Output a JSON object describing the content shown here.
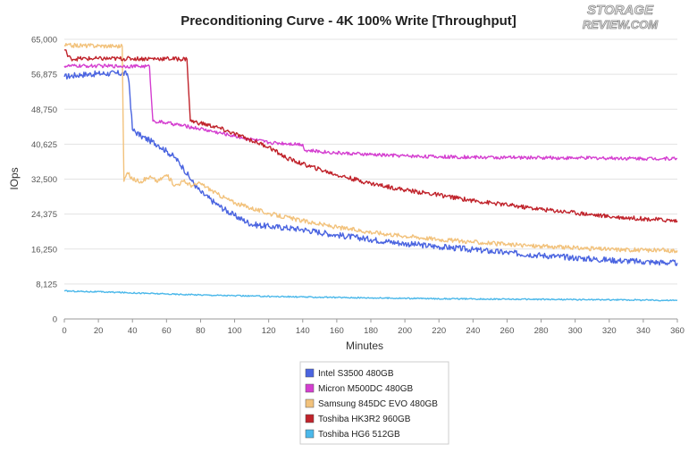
{
  "logo": {
    "line1": "STORAGE",
    "line2": "REVIEW.COM",
    "alt": "StorageReview.com logo"
  },
  "chart_data": {
    "type": "line",
    "title": "Preconditioning Curve - 4K 100% Write [Throughput]",
    "xlabel": "Minutes",
    "ylabel": "IOps",
    "xlim": [
      0,
      360
    ],
    "ylim": [
      0,
      65000
    ],
    "x_ticks": [
      0,
      20,
      40,
      60,
      80,
      100,
      120,
      140,
      160,
      180,
      200,
      220,
      240,
      260,
      280,
      300,
      320,
      340,
      360
    ],
    "y_ticks": [
      0,
      8125,
      16250,
      24375,
      32500,
      40625,
      48750,
      56875,
      65000
    ],
    "y_tick_labels": [
      "0",
      "8,125",
      "16,250",
      "24,375",
      "32,500",
      "40,625",
      "48,750",
      "56,875",
      "65,000"
    ],
    "grid": "horizontal",
    "legend_position": "bottom",
    "series": [
      {
        "name": "Intel S3500 480GB",
        "color": "#4a64e0",
        "points": [
          [
            0,
            56300
          ],
          [
            10,
            56800
          ],
          [
            20,
            57000
          ],
          [
            30,
            57100
          ],
          [
            37,
            57000
          ],
          [
            38,
            55000
          ],
          [
            40,
            44000
          ],
          [
            45,
            42500
          ],
          [
            50,
            41500
          ],
          [
            55,
            40500
          ],
          [
            60,
            39000
          ],
          [
            65,
            37500
          ],
          [
            70,
            35000
          ],
          [
            75,
            32000
          ],
          [
            80,
            29500
          ],
          [
            90,
            26500
          ],
          [
            100,
            24000
          ],
          [
            110,
            22000
          ],
          [
            120,
            21500
          ],
          [
            130,
            21200
          ],
          [
            140,
            20800
          ],
          [
            160,
            19500
          ],
          [
            180,
            18500
          ],
          [
            200,
            17500
          ],
          [
            220,
            16800
          ],
          [
            240,
            16100
          ],
          [
            260,
            15400
          ],
          [
            280,
            14800
          ],
          [
            300,
            14200
          ],
          [
            320,
            13700
          ],
          [
            340,
            13300
          ],
          [
            360,
            13000
          ]
        ],
        "noise": 700
      },
      {
        "name": "Micron M500DC 480GB",
        "color": "#d43ed0",
        "points": [
          [
            0,
            58800
          ],
          [
            25,
            58800
          ],
          [
            50,
            58700
          ],
          [
            52,
            46000
          ],
          [
            60,
            45600
          ],
          [
            80,
            44200
          ],
          [
            100,
            42500
          ],
          [
            120,
            41000
          ],
          [
            140,
            40600
          ],
          [
            141,
            39200
          ],
          [
            160,
            38600
          ],
          [
            180,
            38200
          ],
          [
            200,
            37900
          ],
          [
            220,
            37700
          ],
          [
            240,
            37600
          ],
          [
            260,
            37500
          ],
          [
            280,
            37500
          ],
          [
            300,
            37400
          ],
          [
            320,
            37400
          ],
          [
            340,
            37300
          ],
          [
            360,
            37300
          ]
        ],
        "noise": 400
      },
      {
        "name": "Samsung 845DC EVO 480GB",
        "color": "#f2c27c",
        "points": [
          [
            0,
            63600
          ],
          [
            20,
            63500
          ],
          [
            34,
            63400
          ],
          [
            35,
            32000
          ],
          [
            37,
            34000
          ],
          [
            40,
            32500
          ],
          [
            45,
            32000
          ],
          [
            50,
            33000
          ],
          [
            55,
            32000
          ],
          [
            60,
            33500
          ],
          [
            65,
            31000
          ],
          [
            70,
            32000
          ],
          [
            75,
            31000
          ],
          [
            80,
            31500
          ],
          [
            90,
            29000
          ],
          [
            100,
            27000
          ],
          [
            120,
            24500
          ],
          [
            140,
            22800
          ],
          [
            160,
            21300
          ],
          [
            180,
            20200
          ],
          [
            200,
            19300
          ],
          [
            220,
            18500
          ],
          [
            240,
            17900
          ],
          [
            260,
            17300
          ],
          [
            280,
            16900
          ],
          [
            300,
            16500
          ],
          [
            320,
            16200
          ],
          [
            340,
            16000
          ],
          [
            360,
            15900
          ]
        ],
        "noise": 500
      },
      {
        "name": "Toshiba HK3R2 960GB",
        "color": "#c0232b",
        "points": [
          [
            0,
            62500
          ],
          [
            1,
            62500
          ],
          [
            2,
            61000
          ],
          [
            4,
            60500
          ],
          [
            20,
            60500
          ],
          [
            40,
            60500
          ],
          [
            60,
            60500
          ],
          [
            72,
            60400
          ],
          [
            74,
            46000
          ],
          [
            80,
            45500
          ],
          [
            90,
            44500
          ],
          [
            100,
            43000
          ],
          [
            110,
            41500
          ],
          [
            120,
            40000
          ],
          [
            130,
            37500
          ],
          [
            140,
            36000
          ],
          [
            160,
            33500
          ],
          [
            180,
            31500
          ],
          [
            200,
            30000
          ],
          [
            220,
            28800
          ],
          [
            240,
            27500
          ],
          [
            260,
            26500
          ],
          [
            280,
            25500
          ],
          [
            300,
            24700
          ],
          [
            320,
            23800
          ],
          [
            340,
            23300
          ],
          [
            360,
            22800
          ]
        ],
        "noise": 500
      },
      {
        "name": "Toshiba HG6 512GB",
        "color": "#4bb8ea",
        "points": [
          [
            0,
            6500
          ],
          [
            30,
            6200
          ],
          [
            60,
            5800
          ],
          [
            100,
            5400
          ],
          [
            140,
            5100
          ],
          [
            180,
            4900
          ],
          [
            220,
            4700
          ],
          [
            260,
            4600
          ],
          [
            300,
            4500
          ],
          [
            340,
            4400
          ],
          [
            360,
            4300
          ]
        ],
        "noise": 150
      }
    ]
  }
}
